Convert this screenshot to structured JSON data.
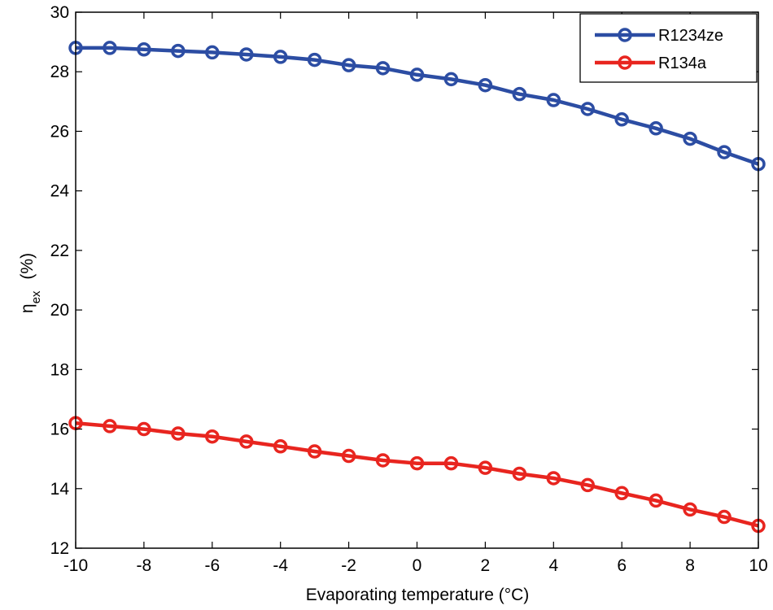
{
  "chart_data": {
    "type": "line",
    "title": "",
    "xlabel": "Evaporating  temperature (°C)",
    "ylabel_main": "η",
    "ylabel_sub": "ex",
    "ylabel_unit": "(%)",
    "xlim": [
      -10,
      10
    ],
    "ylim": [
      12,
      30
    ],
    "xticks": [
      -10,
      -8,
      -6,
      -4,
      -2,
      0,
      2,
      4,
      6,
      8,
      10
    ],
    "yticks": [
      12,
      14,
      16,
      18,
      20,
      22,
      24,
      26,
      28,
      30
    ],
    "grid": false,
    "legend_position": "top-right",
    "x": [
      -10,
      -9,
      -8,
      -7,
      -6,
      -5,
      -4,
      -3,
      -2,
      -1,
      0,
      1,
      2,
      3,
      4,
      5,
      6,
      7,
      8,
      9,
      10
    ],
    "series": [
      {
        "name": "R1234ze",
        "color": "#2c4da3",
        "values": [
          28.8,
          28.8,
          28.75,
          28.7,
          28.65,
          28.58,
          28.5,
          28.4,
          28.22,
          28.12,
          27.9,
          27.75,
          27.55,
          27.25,
          27.05,
          26.75,
          26.4,
          26.1,
          25.75,
          25.3,
          24.9
        ]
      },
      {
        "name": "R134a",
        "color": "#e8251f",
        "values": [
          16.2,
          16.1,
          16.0,
          15.85,
          15.75,
          15.58,
          15.42,
          15.25,
          15.1,
          14.95,
          14.85,
          14.85,
          14.7,
          14.5,
          14.35,
          14.12,
          13.85,
          13.6,
          13.3,
          13.05,
          12.75
        ]
      }
    ]
  }
}
